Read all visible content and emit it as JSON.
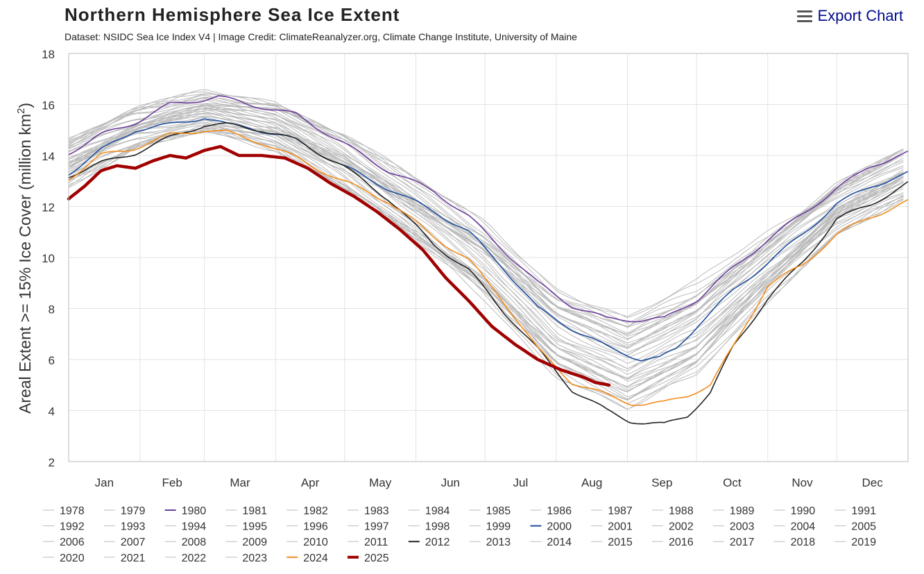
{
  "header": {
    "title": "Northern Hemisphere Sea Ice Extent",
    "subtitle": "Dataset: NSIDC Sea Ice Index V4 | Image Credit: ClimateReanalyzer.org, Climate Change Institute, University of Maine",
    "export_label": "Export Chart",
    "export_icon": "hamburger-menu-icon"
  },
  "chart_data": {
    "type": "line",
    "title": "Northern Hemisphere Sea Ice Extent",
    "subtitle": "Dataset: NSIDC Sea Ice Index V4 | Image Credit: ClimateReanalyzer.org, Climate Change Institute, University of Maine",
    "ylabel": "Areal Extent >= 15% Ice Cover (million km²)",
    "ylabel_main": "Areal Extent >= 15% Ice Cover (million km",
    "ylabel_sup": "2",
    "ylabel_tail": ")",
    "xlabel": "",
    "x_unit": "day of year",
    "xlim": [
      1,
      366
    ],
    "ylim": [
      2,
      18
    ],
    "y_ticks": [
      2,
      4,
      6,
      8,
      10,
      12,
      14,
      16,
      18
    ],
    "month_labels": [
      "Jan",
      "Feb",
      "Mar",
      "Apr",
      "May",
      "Jun",
      "Jul",
      "Aug",
      "Sep",
      "Oct",
      "Nov",
      "Dec"
    ],
    "month_start_days": [
      1,
      32,
      60,
      91,
      121,
      152,
      182,
      213,
      244,
      274,
      305,
      335
    ],
    "grid": true,
    "legend_position": "bottom",
    "colors": {
      "background_years": "#bbbbbb",
      "1980": "#6a3d9a",
      "2000": "#1f4e9e",
      "2012": "#222222",
      "2024": "#f28c1c",
      "2025": "#a10000",
      "grid": "#e3e3e3",
      "axis": "#bbbbbb"
    },
    "series": [
      {
        "name": "1980",
        "color": "#6a3d9a",
        "width": 1.6,
        "x": [
          1,
          15,
          30,
          45,
          60,
          66,
          80,
          100,
          120,
          140,
          160,
          175,
          190,
          205,
          220,
          235,
          250,
          260,
          275,
          290,
          305,
          320,
          335,
          350,
          366
        ],
        "y": [
          14.1,
          14.8,
          15.3,
          16.0,
          16.2,
          16.3,
          16.0,
          15.6,
          14.5,
          13.4,
          12.6,
          11.6,
          10.3,
          9.0,
          8.1,
          7.6,
          7.55,
          7.6,
          8.4,
          9.6,
          10.7,
          11.7,
          12.7,
          13.6,
          14.1
        ]
      },
      {
        "name": "2000",
        "color": "#1f4e9e",
        "width": 1.6,
        "x": [
          1,
          15,
          30,
          45,
          60,
          70,
          80,
          100,
          120,
          140,
          160,
          175,
          190,
          205,
          220,
          235,
          250,
          258,
          265,
          275,
          290,
          305,
          320,
          335,
          350,
          366
        ],
        "y": [
          13.3,
          14.2,
          15.0,
          15.2,
          15.5,
          15.2,
          15.1,
          14.6,
          13.6,
          12.7,
          11.8,
          11.0,
          9.6,
          8.0,
          7.2,
          6.5,
          6.0,
          6.05,
          6.4,
          7.4,
          8.7,
          9.8,
          10.9,
          12.1,
          12.8,
          13.3
        ]
      },
      {
        "name": "2012",
        "color": "#222222",
        "width": 1.6,
        "x": [
          1,
          15,
          30,
          45,
          60,
          70,
          85,
          100,
          120,
          140,
          160,
          175,
          190,
          205,
          220,
          235,
          245,
          252,
          260,
          270,
          280,
          290,
          305,
          320,
          335,
          350,
          366
        ],
        "y": [
          13.2,
          13.7,
          14.1,
          14.7,
          15.2,
          15.2,
          15.0,
          14.6,
          13.6,
          12.3,
          10.5,
          9.5,
          7.9,
          6.4,
          4.8,
          4.0,
          3.6,
          3.5,
          3.45,
          3.8,
          4.7,
          6.5,
          8.4,
          9.8,
          11.5,
          12.1,
          12.9
        ]
      },
      {
        "name": "2024",
        "color": "#f28c1c",
        "width": 1.6,
        "x": [
          1,
          15,
          30,
          45,
          60,
          70,
          85,
          100,
          120,
          140,
          160,
          175,
          190,
          205,
          220,
          235,
          245,
          252,
          260,
          270,
          280,
          290,
          305,
          320,
          335,
          350,
          366
        ],
        "y": [
          13.1,
          14.0,
          14.3,
          14.8,
          15.0,
          14.9,
          14.5,
          13.9,
          13.0,
          12.2,
          10.8,
          9.9,
          8.3,
          6.4,
          5.1,
          4.6,
          4.3,
          4.25,
          4.3,
          4.6,
          5.0,
          6.5,
          8.9,
          9.7,
          10.9,
          11.6,
          12.2
        ]
      },
      {
        "name": "2025",
        "color": "#a10000",
        "width": 4.5,
        "x": [
          1,
          8,
          15,
          22,
          30,
          38,
          45,
          52,
          60,
          67,
          75,
          85,
          95,
          105,
          115,
          125,
          135,
          145,
          155,
          165,
          175,
          185,
          195,
          205,
          215,
          225,
          230,
          236
        ],
        "y": [
          12.3,
          12.8,
          13.4,
          13.6,
          13.5,
          13.8,
          14.0,
          13.9,
          14.2,
          14.35,
          14.0,
          14.0,
          13.9,
          13.5,
          12.9,
          12.4,
          11.8,
          11.1,
          10.3,
          9.2,
          8.3,
          7.3,
          6.6,
          6.0,
          5.6,
          5.3,
          5.1,
          5.0
        ]
      }
    ],
    "background_years": [
      "1978",
      "1979",
      "1981",
      "1982",
      "1983",
      "1984",
      "1985",
      "1986",
      "1987",
      "1988",
      "1989",
      "1990",
      "1991",
      "1992",
      "1993",
      "1994",
      "1995",
      "1996",
      "1997",
      "1998",
      "1999",
      "2001",
      "2002",
      "2003",
      "2004",
      "2005",
      "2006",
      "2007",
      "2008",
      "2009",
      "2010",
      "2011",
      "2013",
      "2014",
      "2015",
      "2016",
      "2017",
      "2018",
      "2019",
      "2020",
      "2021",
      "2022",
      "2023"
    ],
    "background_band": {
      "x": [
        1,
        30,
        60,
        91,
        121,
        152,
        182,
        213,
        244,
        274,
        305,
        335,
        366
      ],
      "y_high": [
        14.6,
        15.8,
        16.5,
        16.1,
        14.8,
        13.0,
        11.3,
        8.8,
        7.7,
        9.0,
        11.0,
        12.9,
        14.4
      ],
      "y_low": [
        12.9,
        14.3,
        14.9,
        14.2,
        12.6,
        10.6,
        8.4,
        5.4,
        4.0,
        5.4,
        8.4,
        11.0,
        12.4
      ]
    },
    "legend": [
      "1978",
      "1979",
      "1980",
      "1981",
      "1982",
      "1983",
      "1984",
      "1985",
      "1986",
      "1987",
      "1988",
      "1989",
      "1990",
      "1991",
      "1992",
      "1993",
      "1994",
      "1995",
      "1996",
      "1997",
      "1998",
      "1999",
      "2000",
      "2001",
      "2002",
      "2003",
      "2004",
      "2005",
      "2006",
      "2007",
      "2008",
      "2009",
      "2010",
      "2011",
      "2012",
      "2013",
      "2014",
      "2015",
      "2016",
      "2017",
      "2018",
      "2019",
      "2020",
      "2021",
      "2022",
      "2023",
      "2024",
      "2025"
    ]
  }
}
